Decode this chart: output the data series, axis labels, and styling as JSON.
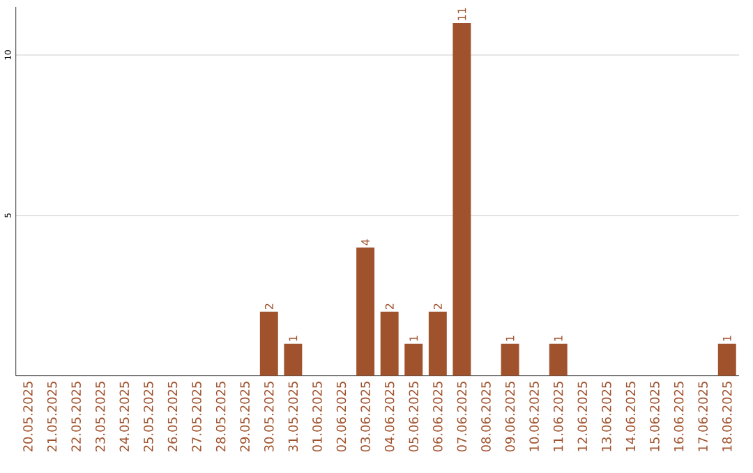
{
  "chart_data": {
    "type": "bar",
    "categories": [
      "20.05.2025",
      "21.05.2025",
      "22.05.2025",
      "23.05.2025",
      "24.05.2025",
      "25.05.2025",
      "26.05.2025",
      "27.05.2025",
      "28.05.2025",
      "29.05.2025",
      "30.05.2025",
      "31.05.2025",
      "01.06.2025",
      "02.06.2025",
      "03.06.2025",
      "04.06.2025",
      "05.06.2025",
      "06.06.2025",
      "07.06.2025",
      "08.06.2025",
      "09.06.2025",
      "10.06.2025",
      "11.06.2025",
      "12.06.2025",
      "13.06.2025",
      "14.06.2025",
      "15.06.2025",
      "16.06.2025",
      "17.06.2025",
      "18.06.2025"
    ],
    "values": [
      0,
      0,
      0,
      0,
      0,
      0,
      0,
      0,
      0,
      0,
      2,
      1,
      0,
      0,
      4,
      2,
      1,
      2,
      11,
      0,
      1,
      0,
      1,
      0,
      0,
      0,
      0,
      0,
      0,
      1
    ],
    "value_labels": [
      null,
      null,
      null,
      null,
      null,
      null,
      null,
      null,
      null,
      null,
      "2",
      "1",
      null,
      null,
      "4",
      "2",
      "1",
      "2",
      "11",
      null,
      "1",
      null,
      "1",
      null,
      null,
      null,
      null,
      null,
      null,
      "1"
    ],
    "color": "#a0522d",
    "ylim": [
      0,
      11.5
    ],
    "yticks": [
      5,
      10
    ],
    "grid": "y"
  }
}
